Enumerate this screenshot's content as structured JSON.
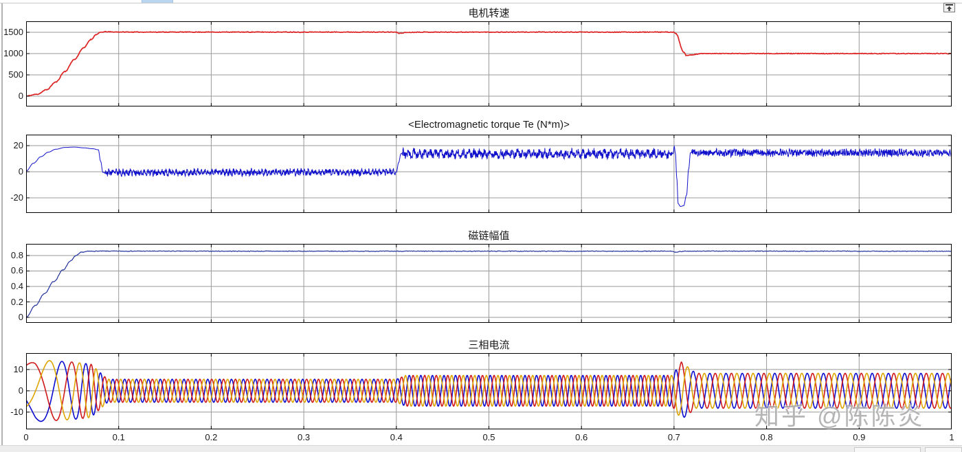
{
  "watermark": {
    "text": "知乎 @陈陈炎"
  },
  "window": {
    "dock_icon": "dock-arrow-icon"
  },
  "style": {
    "grid_color": "#999999",
    "border_color": "#000000",
    "tick_color": "#000000"
  },
  "xaxis": {
    "ticks": [
      "0",
      "0.1",
      "0.2",
      "0.3",
      "0.4",
      "0.5",
      "0.6",
      "0.7",
      "0.8",
      "0.9",
      "1"
    ],
    "range": [
      0,
      1
    ]
  },
  "chart_data": [
    {
      "type": "line",
      "title": "电机转速",
      "color": "#dd2222",
      "line_width": 1.7,
      "ylim": [
        -242,
        1758
      ],
      "yticks": [
        1500,
        1000,
        500,
        0
      ],
      "signal": {
        "kind": "keypoints",
        "seed": 11,
        "dt": 0.0008,
        "ripple": 8,
        "points": [
          [
            0,
            3
          ],
          [
            0.012,
            45
          ],
          [
            0.022,
            150
          ],
          [
            0.032,
            330
          ],
          [
            0.042,
            580
          ],
          [
            0.052,
            860
          ],
          [
            0.062,
            1130
          ],
          [
            0.07,
            1330
          ],
          [
            0.076,
            1450
          ],
          [
            0.081,
            1502
          ],
          [
            0.086,
            1512
          ],
          [
            0.095,
            1507
          ],
          [
            0.12,
            1505
          ],
          [
            0.39,
            1505
          ],
          [
            0.399,
            1504
          ],
          [
            0.403,
            1477
          ],
          [
            0.412,
            1497
          ],
          [
            0.425,
            1504
          ],
          [
            0.55,
            1504
          ],
          [
            0.699,
            1504
          ],
          [
            0.702,
            1468
          ],
          [
            0.7105,
            1030
          ],
          [
            0.7135,
            952
          ],
          [
            0.719,
            968
          ],
          [
            0.728,
            997
          ],
          [
            0.742,
            1001
          ],
          [
            1,
            1000
          ]
        ]
      }
    },
    {
      "type": "line",
      "title": "<Electromagnetic torque Te (N*m)>",
      "color": "#1111cc",
      "line_width": 1.0,
      "ylim": [
        -31.6,
        28.4
      ],
      "yticks": [
        20,
        0,
        -20
      ],
      "signal": {
        "kind": "keypoints-noise",
        "seed": 23,
        "dt": 0.0003,
        "points": [
          [
            0,
            0.5
          ],
          [
            0.008,
            6.5
          ],
          [
            0.016,
            11.5
          ],
          [
            0.024,
            15
          ],
          [
            0.032,
            17.2
          ],
          [
            0.042,
            18.6
          ],
          [
            0.052,
            18.9
          ],
          [
            0.062,
            18.3
          ],
          [
            0.072,
            17.6
          ],
          [
            0.078,
            16.8
          ],
          [
            0.0805,
            8
          ],
          [
            0.083,
            -0.6
          ],
          [
            0.4,
            -0.4
          ],
          [
            0.4025,
            7
          ],
          [
            0.405,
            13.8
          ],
          [
            0.699,
            13.8
          ],
          [
            0.7002,
            19.5
          ],
          [
            0.7015,
            14
          ],
          [
            0.703,
            -5
          ],
          [
            0.7045,
            -24.5
          ],
          [
            0.707,
            -26.6
          ],
          [
            0.7105,
            -26
          ],
          [
            0.7135,
            -18
          ],
          [
            0.7158,
            2
          ],
          [
            0.7178,
            14.6
          ],
          [
            1,
            14.4
          ]
        ],
        "noise": [
          [
            0.085,
            0.399,
            2.1,
            1.1,
            260
          ],
          [
            0.406,
            0.698,
            2.8,
            1.6,
            170
          ],
          [
            0.719,
            1.0,
            2.5,
            0.8,
            420
          ]
        ]
      }
    },
    {
      "type": "line",
      "title": "磁链幅值",
      "color": "#20309a",
      "line_width": 1.2,
      "ylim": [
        -0.071,
        0.951
      ],
      "yticks": [
        0.8,
        0.6,
        0.4,
        0.2,
        0
      ],
      "signal": {
        "kind": "keypoints",
        "seed": 7,
        "dt": 0.0008,
        "ripple": 0.004,
        "points": [
          [
            0,
            0
          ],
          [
            0.01,
            0.155
          ],
          [
            0.02,
            0.31
          ],
          [
            0.03,
            0.465
          ],
          [
            0.04,
            0.615
          ],
          [
            0.048,
            0.73
          ],
          [
            0.054,
            0.8
          ],
          [
            0.06,
            0.843
          ],
          [
            0.068,
            0.856
          ],
          [
            0.08,
            0.857
          ],
          [
            0.3,
            0.856
          ],
          [
            0.698,
            0.856
          ],
          [
            0.702,
            0.84
          ],
          [
            0.707,
            0.852
          ],
          [
            0.715,
            0.857
          ],
          [
            1,
            0.856
          ]
        ]
      }
    },
    {
      "type": "line",
      "title": "三相电流",
      "ylim": [
        -18.1,
        17.7
      ],
      "yticks": [
        10,
        0,
        -10
      ],
      "line_width": 1.6,
      "series": [
        {
          "name": "phase-blue",
          "color": "#0b0bd0",
          "phase_deg": -250
        },
        {
          "name": "phase-red",
          "color": "#d01818",
          "phase_deg": -10
        },
        {
          "name": "phase-yellow",
          "color": "#dda300",
          "phase_deg": -130
        }
      ],
      "signal": {
        "kind": "three-phase",
        "dt": 0.0003,
        "segments": [
          [
            0,
            0.01,
            12,
            14.5,
            9,
            12
          ],
          [
            0.01,
            0.05,
            14.5,
            13.5,
            12,
            35
          ],
          [
            0.05,
            0.07,
            13.5,
            12.5,
            35,
            60
          ],
          [
            0.07,
            0.088,
            12.5,
            5.4,
            60,
            78
          ],
          [
            0.088,
            0.4,
            5.4,
            5.4,
            78,
            78
          ],
          [
            0.4,
            0.41,
            5.4,
            7.2,
            78,
            80
          ],
          [
            0.41,
            0.698,
            7.2,
            7.2,
            80,
            80
          ],
          [
            0.698,
            0.708,
            7.2,
            13.5,
            80,
            45
          ],
          [
            0.708,
            0.722,
            13.5,
            8.8,
            45,
            56
          ],
          [
            0.722,
            1,
            8.2,
            8.2,
            57,
            57
          ]
        ]
      }
    }
  ]
}
